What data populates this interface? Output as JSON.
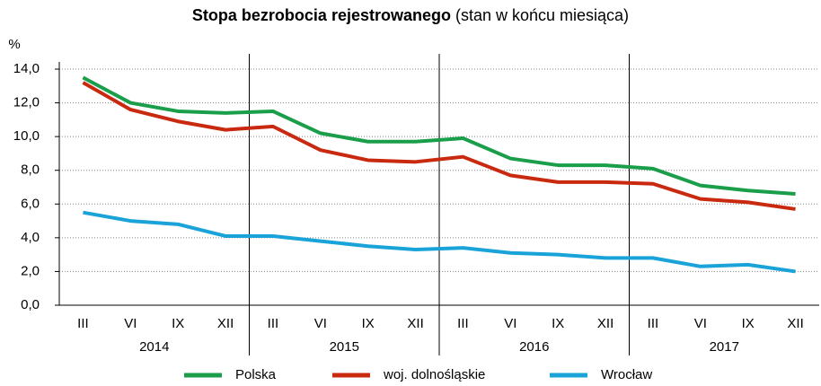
{
  "chart_data": {
    "type": "line",
    "title": "Stopa bezrobocia rejestrowanego",
    "subtitle": "(stan w końcu miesiąca)",
    "y_label": "%",
    "categories": [
      "III",
      "VI",
      "IX",
      "XII",
      "III",
      "VI",
      "IX",
      "XII",
      "III",
      "VI",
      "IX",
      "XII",
      "III",
      "VI",
      "IX",
      "XII"
    ],
    "groups": [
      "2014",
      "2015",
      "2016",
      "2017"
    ],
    "series": [
      {
        "name": "Polska",
        "color": "#1a9e4a",
        "values": [
          13.5,
          12.0,
          11.5,
          11.4,
          11.5,
          10.2,
          9.7,
          9.7,
          9.9,
          8.7,
          8.3,
          8.3,
          8.1,
          7.1,
          6.8,
          6.6
        ]
      },
      {
        "name": "woj. dolnośląskie",
        "color": "#c8290f",
        "values": [
          13.2,
          11.6,
          10.9,
          10.4,
          10.6,
          9.2,
          8.6,
          8.5,
          8.8,
          7.7,
          7.3,
          7.3,
          7.2,
          6.3,
          6.1,
          5.7
        ]
      },
      {
        "name": "Wrocław",
        "color": "#1aa3d9",
        "values": [
          5.5,
          5.0,
          4.8,
          4.1,
          4.1,
          3.8,
          3.5,
          3.3,
          3.4,
          3.1,
          3.0,
          2.8,
          2.8,
          2.3,
          2.4,
          2.0
        ]
      }
    ],
    "ylim": [
      0,
      14
    ],
    "yticks": [
      {
        "value": 0,
        "label": "0,0"
      },
      {
        "value": 2,
        "label": "2,0"
      },
      {
        "value": 4,
        "label": "4,0"
      },
      {
        "value": 6,
        "label": "6,0"
      },
      {
        "value": 8,
        "label": "8,0"
      },
      {
        "value": 10,
        "label": "10,0"
      },
      {
        "value": 12,
        "label": "12,0"
      },
      {
        "value": 14,
        "label": "14,0"
      }
    ],
    "grid": true
  }
}
